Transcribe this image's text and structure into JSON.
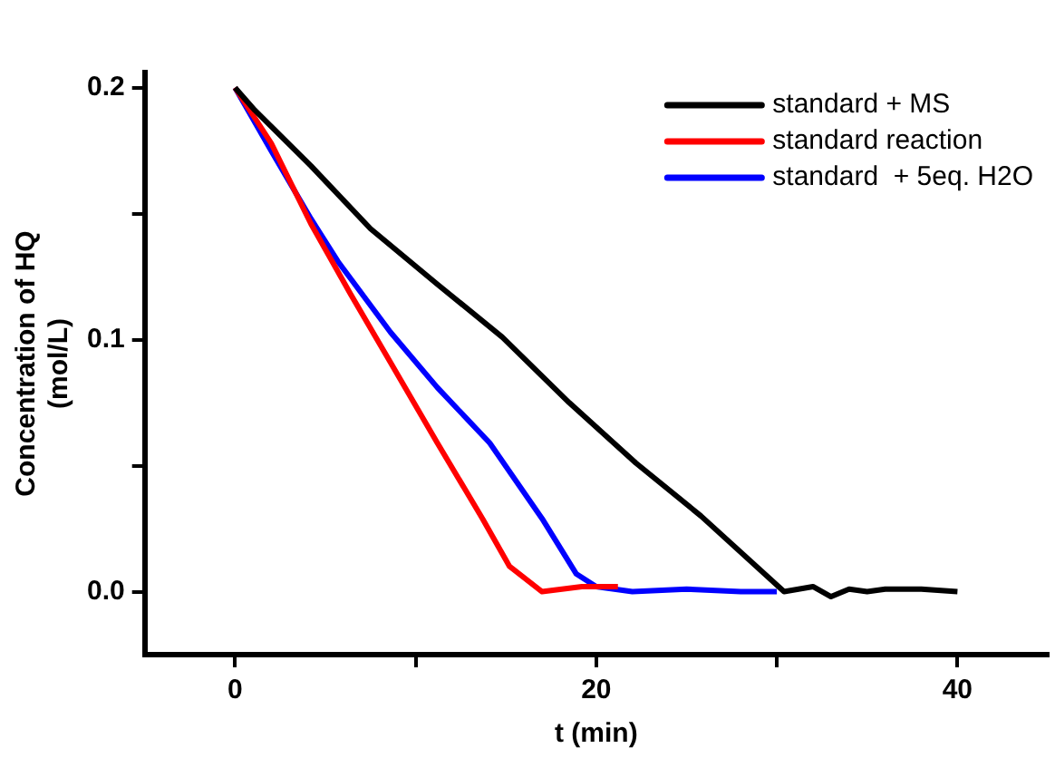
{
  "chart_data": {
    "type": "line",
    "xlabel": "t (min)",
    "ylabel": "Concentration of HQ\n(mol/L)",
    "xlim": [
      -5,
      45
    ],
    "xticks": [
      0,
      {
        "value": 10,
        "label": null
      },
      20,
      {
        "value": 30,
        "label": null
      },
      40
    ],
    "ylim": [
      -0.025,
      0.206
    ],
    "yticks": [
      {
        "value": 0,
        "label": "0.0"
      },
      {
        "value": 0.05,
        "label": null
      },
      {
        "value": 0.1,
        "label": "0.1"
      },
      {
        "value": 0.15,
        "label": null
      },
      {
        "value": 0.2,
        "label": "0.2"
      }
    ],
    "grid": false,
    "legend": "top right",
    "marker": "none",
    "line_style": "solid",
    "series": [
      {
        "name": "standard + MS",
        "color": "#000000",
        "x": [
          0,
          1.1,
          4.2,
          7.5,
          11.2,
          14.8,
          18.5,
          22.2,
          25.8,
          30.4,
          32,
          33,
          34,
          35,
          36,
          38,
          40
        ],
        "values": [
          0.2,
          0.191,
          0.169,
          0.144,
          0.122,
          0.101,
          0.075,
          0.051,
          0.03,
          0,
          0.002,
          -0.002,
          0.001,
          0,
          0.001,
          0.001,
          0
        ]
      },
      {
        "name": "standard reaction",
        "color": "#ff0000",
        "x": [
          0,
          2,
          4.2,
          6.4,
          8.6,
          11.2,
          13.7,
          15.2,
          17,
          19.2,
          21.2
        ],
        "values": [
          0.2,
          0.178,
          0.146,
          0.118,
          0.091,
          0.059,
          0.029,
          0.01,
          0,
          0.002,
          0.002
        ]
      },
      {
        "name": "standard  + 5eq. H2O",
        "color": "#0000ff",
        "x": [
          0,
          2,
          4.2,
          5.7,
          8.6,
          11.2,
          14.1,
          17,
          18.9,
          20,
          22,
          25,
          28,
          30
        ],
        "values": [
          0.2,
          0.175,
          0.148,
          0.131,
          0.103,
          0.081,
          0.059,
          0.029,
          0.007,
          0.002,
          0,
          0.001,
          0,
          0
        ]
      }
    ]
  }
}
